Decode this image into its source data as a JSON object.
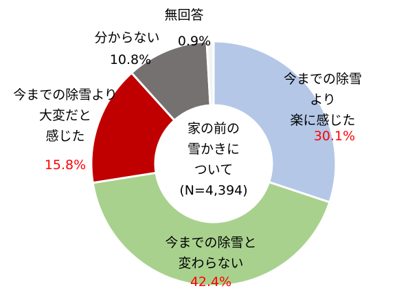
{
  "chart_data": {
    "type": "donut",
    "title": "家の前の\n雪かきに\nついて\n(N=4,394)",
    "categories": [
      "今までの除雪より\n楽に感じた",
      "今までの除雪と\n変わらない",
      "今までの除雪より\n大変だと\n感じた",
      "分からない",
      "無回答"
    ],
    "values": [
      30.1,
      42.4,
      15.8,
      10.8,
      0.9
    ],
    "value_labels": [
      "30.1%",
      "42.4%",
      "15.8%",
      "10.8%",
      "0.9%"
    ],
    "colors": [
      "#b4c7e7",
      "#a9d18e",
      "#c00000",
      "#767171",
      "#f2f2f2"
    ],
    "value_label_colors": [
      "#ff0000",
      "#ff0000",
      "#ff0000",
      "#000000",
      "#000000"
    ]
  }
}
